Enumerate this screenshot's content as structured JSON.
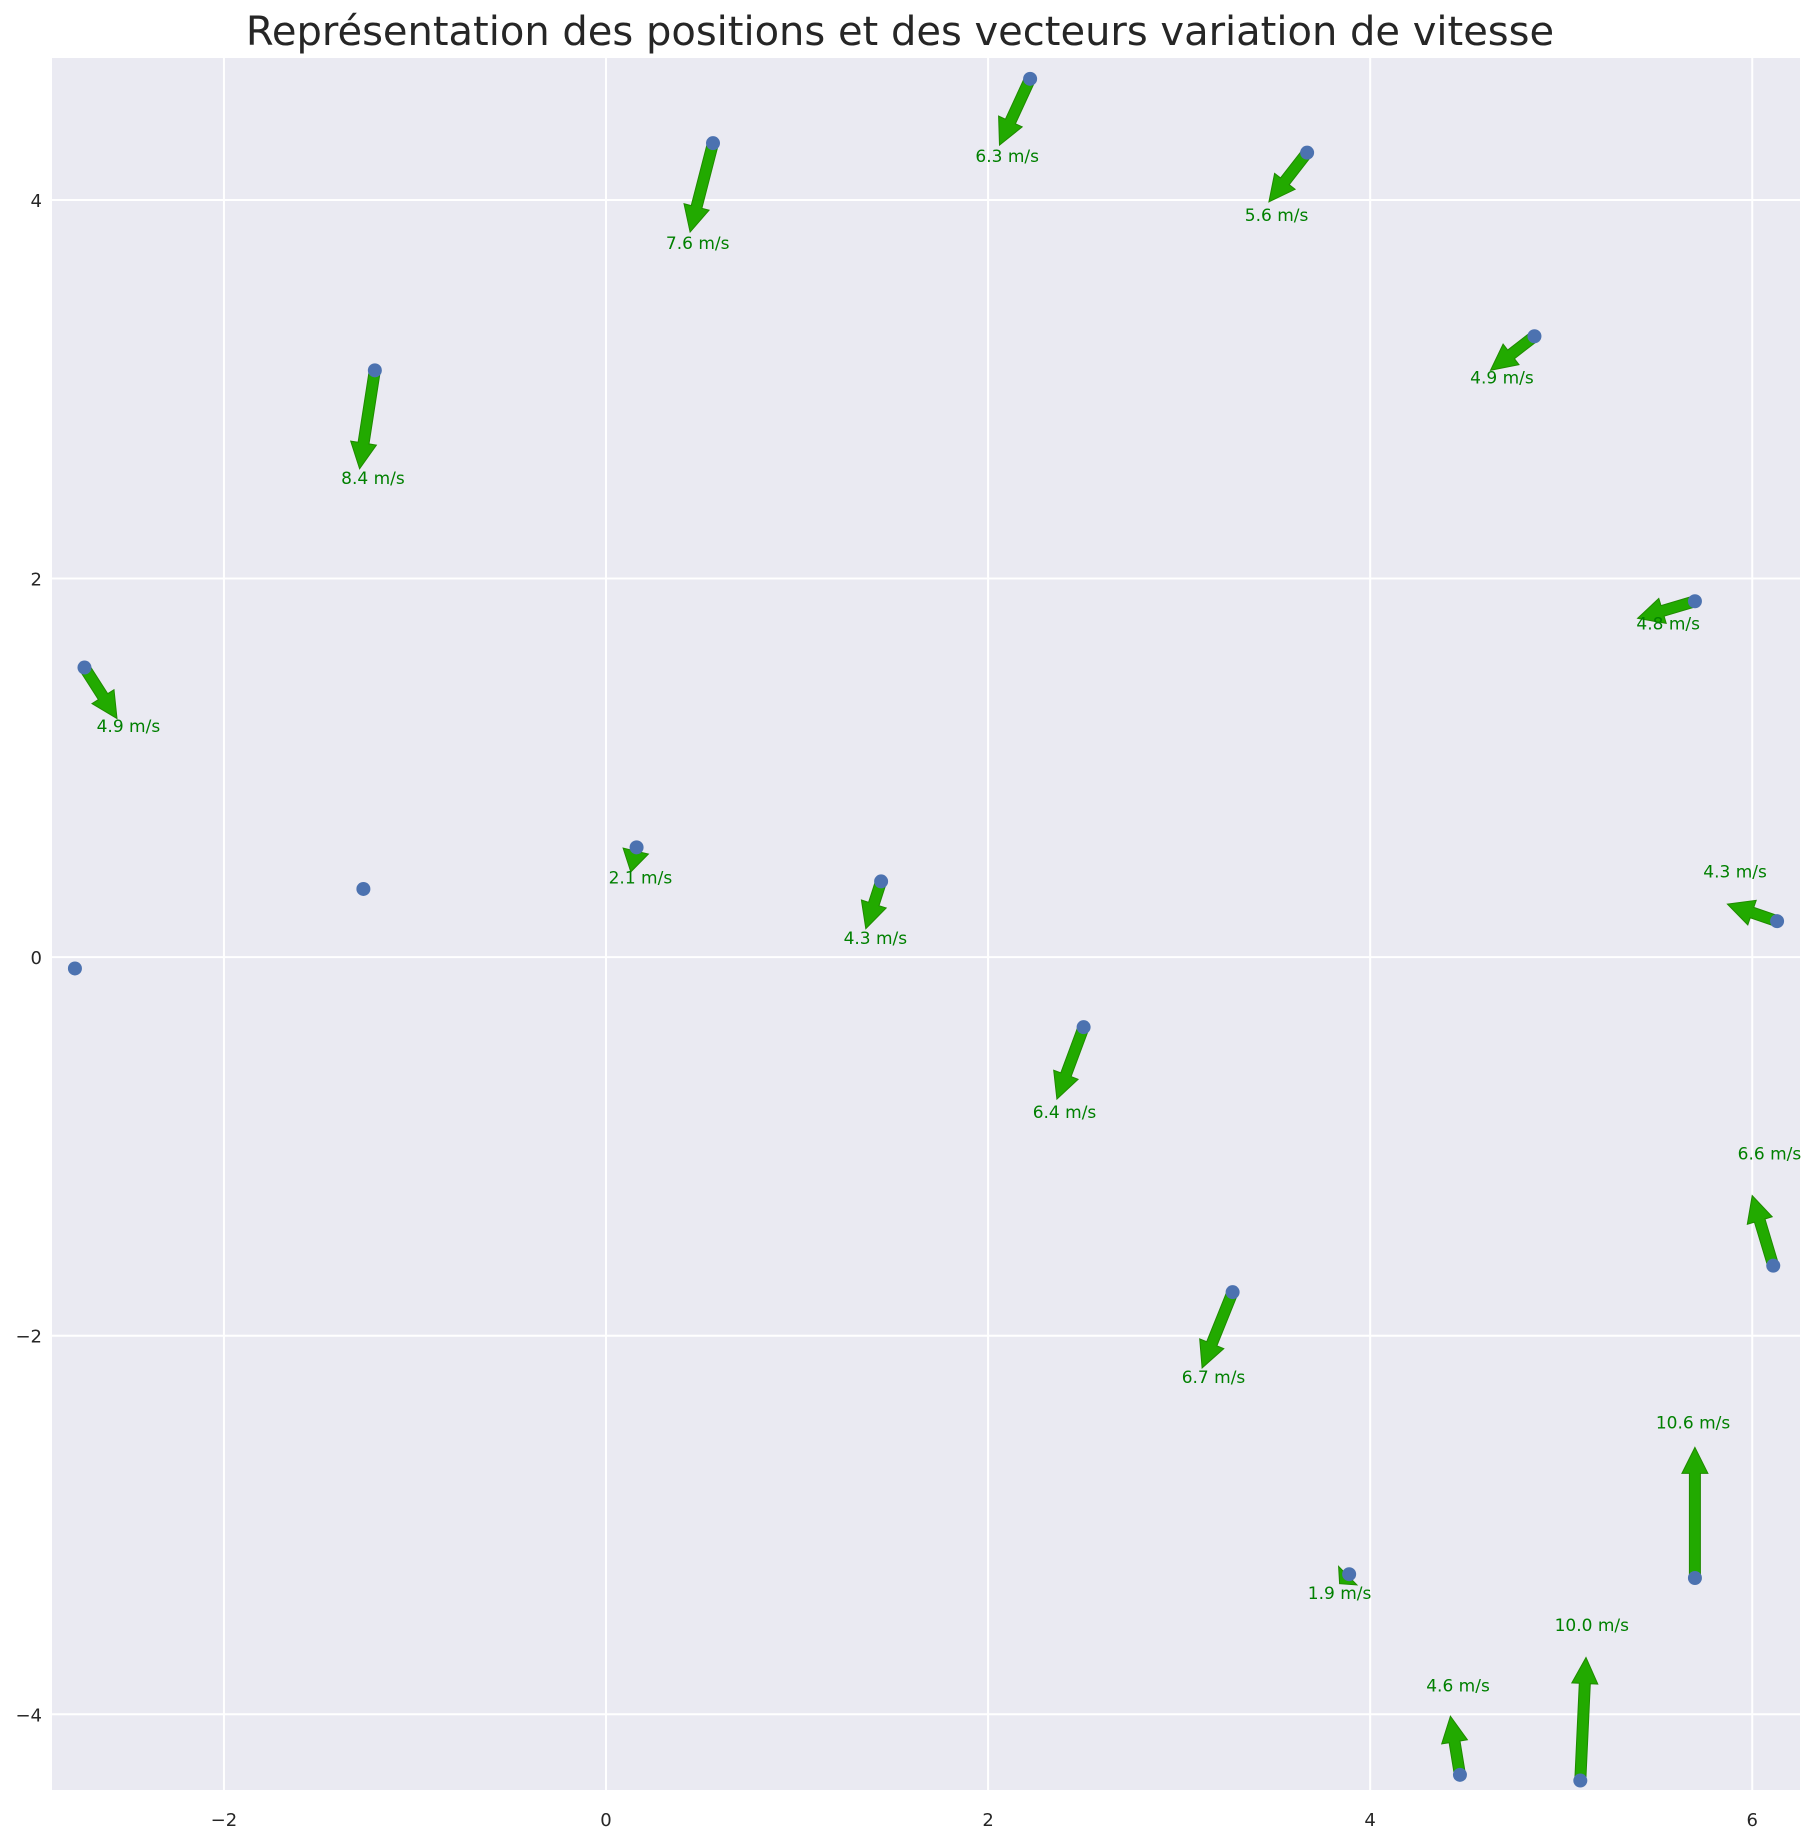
{
  "chart_data": {
    "type": "quiver",
    "title": "Représentation des positions et des vecteurs variation de vitesse",
    "xlabel": "",
    "ylabel": "",
    "xlim": [
      -2.9,
      6.25
    ],
    "ylim": [
      -4.4,
      4.75
    ],
    "xticks": [
      -2,
      0,
      2,
      4,
      6
    ],
    "yticks": [
      -4,
      -2,
      0,
      2,
      4
    ],
    "xtick_labels": [
      "−2",
      "0",
      "2",
      "4",
      "6"
    ],
    "ytick_labels": [
      "−4",
      "−2",
      "0",
      "2",
      "4"
    ],
    "grid": true,
    "colors": {
      "background": "#eaeaf2",
      "grid": "#ffffff",
      "point": "#4c72b0",
      "arrow": "#22aa00",
      "arrow_edge": "#1f8a00",
      "label": "#008000",
      "title": "#262626",
      "tick": "#262626"
    },
    "points": [
      {
        "x": -2.78,
        "y": -0.06
      },
      {
        "x": -2.73,
        "y": 1.53
      },
      {
        "x": -1.27,
        "y": 0.36
      },
      {
        "x": -1.21,
        "y": 3.1
      },
      {
        "x": 0.16,
        "y": 0.58
      },
      {
        "x": 0.56,
        "y": 4.3
      },
      {
        "x": 1.44,
        "y": 0.4
      },
      {
        "x": 2.22,
        "y": 4.64
      },
      {
        "x": 2.5,
        "y": -0.37
      },
      {
        "x": 3.28,
        "y": -1.77
      },
      {
        "x": 3.67,
        "y": 4.25
      },
      {
        "x": 3.89,
        "y": -3.26
      },
      {
        "x": 4.47,
        "y": -4.32
      },
      {
        "x": 4.86,
        "y": 3.28
      },
      {
        "x": 5.1,
        "y": -4.35
      },
      {
        "x": 5.7,
        "y": 1.88
      },
      {
        "x": 5.7,
        "y": -3.28
      },
      {
        "x": 6.11,
        "y": -1.63
      },
      {
        "x": 6.13,
        "y": 0.19
      }
    ],
    "vectors": [
      {
        "x": -2.73,
        "y": 1.53,
        "dx": 0.17,
        "dy": -0.27,
        "label": "4.9 m/s",
        "lx": -2.5,
        "ly": 1.19
      },
      {
        "x": -1.21,
        "y": 3.1,
        "dx": -0.08,
        "dy": -0.52,
        "label": "8.4 m/s",
        "lx": -1.22,
        "ly": 2.5
      },
      {
        "x": 0.16,
        "y": 0.58,
        "dx": -0.03,
        "dy": -0.13,
        "label": "2.1 m/s",
        "lx": 0.18,
        "ly": 0.39
      },
      {
        "x": 0.56,
        "y": 4.3,
        "dx": -0.12,
        "dy": -0.47,
        "label": "7.6 m/s",
        "lx": 0.48,
        "ly": 3.74
      },
      {
        "x": 1.44,
        "y": 0.4,
        "dx": -0.08,
        "dy": -0.25,
        "label": "4.3 m/s",
        "lx": 1.41,
        "ly": 0.07
      },
      {
        "x": 2.22,
        "y": 4.64,
        "dx": -0.16,
        "dy": -0.35,
        "label": "6.3 m/s",
        "lx": 2.1,
        "ly": 4.2
      },
      {
        "x": 2.5,
        "y": -0.37,
        "dx": -0.14,
        "dy": -0.38,
        "label": "6.4 m/s",
        "lx": 2.4,
        "ly": -0.85
      },
      {
        "x": 3.28,
        "y": -1.77,
        "dx": -0.16,
        "dy": -0.4,
        "label": "6.7 m/s",
        "lx": 3.18,
        "ly": -2.25
      },
      {
        "x": 3.67,
        "y": 4.25,
        "dx": -0.2,
        "dy": -0.26,
        "label": "5.6 m/s",
        "lx": 3.51,
        "ly": 3.89
      },
      {
        "x": 3.89,
        "y": -3.26,
        "dx": -0.05,
        "dy": -0.05,
        "label": "1.9 m/s",
        "lx": 3.84,
        "ly": -3.39
      },
      {
        "x": 4.47,
        "y": -4.32,
        "dx": -0.05,
        "dy": 0.31,
        "label": "4.6 m/s",
        "lx": 4.46,
        "ly": -3.88
      },
      {
        "x": 4.86,
        "y": 3.28,
        "dx": -0.23,
        "dy": -0.18,
        "label": "4.9 m/s",
        "lx": 4.69,
        "ly": 3.03
      },
      {
        "x": 5.1,
        "y": -4.35,
        "dx": 0.03,
        "dy": 0.65,
        "label": "10.0 m/s",
        "lx": 5.16,
        "ly": -3.56
      },
      {
        "x": 5.7,
        "y": 1.88,
        "dx": -0.3,
        "dy": -0.09,
        "label": "4.8 m/s",
        "lx": 5.56,
        "ly": 1.73
      },
      {
        "x": 5.7,
        "y": -3.28,
        "dx": 0.0,
        "dy": 0.69,
        "label": "10.6 m/s",
        "lx": 5.69,
        "ly": -2.49
      },
      {
        "x": 6.11,
        "y": -1.63,
        "dx": -0.11,
        "dy": 0.37,
        "label": "6.6 m/s",
        "lx": 6.09,
        "ly": -1.07
      },
      {
        "x": 6.13,
        "y": 0.19,
        "dx": -0.26,
        "dy": 0.09,
        "label": "4.3 m/s",
        "lx": 5.91,
        "ly": 0.42
      }
    ]
  }
}
